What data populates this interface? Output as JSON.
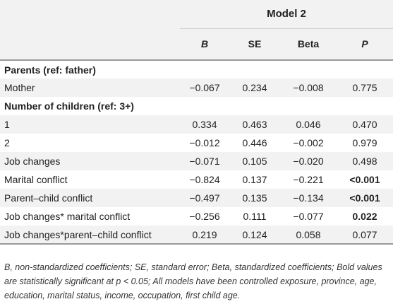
{
  "table": {
    "model_header": "Model 2",
    "columns": [
      "B",
      "SE",
      "Beta",
      "P"
    ],
    "rows": [
      {
        "label": "Parents (ref: father)",
        "section": true,
        "cells": [
          "",
          "",
          "",
          ""
        ]
      },
      {
        "label": "Mother",
        "section": false,
        "cells": [
          "−0.067",
          "0.234",
          "−0.008",
          "0.775"
        ],
        "bold_p": false
      },
      {
        "label": "Number of children (ref: 3+)",
        "section": true,
        "cells": [
          "",
          "",
          "",
          ""
        ]
      },
      {
        "label": "1",
        "section": false,
        "cells": [
          "0.334",
          "0.463",
          "0.046",
          "0.470"
        ],
        "bold_p": false
      },
      {
        "label": "2",
        "section": false,
        "cells": [
          "−0.012",
          "0.446",
          "−0.002",
          "0.979"
        ],
        "bold_p": false
      },
      {
        "label": "Job changes",
        "section": false,
        "cells": [
          "−0.071",
          "0.105",
          "−0.020",
          "0.498"
        ],
        "bold_p": false
      },
      {
        "label": "Marital conflict",
        "section": false,
        "cells": [
          "−0.824",
          "0.137",
          "−0.221",
          "<0.001"
        ],
        "bold_p": true
      },
      {
        "label": "Parent–child conflict",
        "section": false,
        "cells": [
          "−0.497",
          "0.135",
          "−0.134",
          "<0.001"
        ],
        "bold_p": true
      },
      {
        "label": "Job changes* marital conflict",
        "section": false,
        "cells": [
          "−0.256",
          "0.111",
          "−0.077",
          "0.022"
        ],
        "bold_p": true
      },
      {
        "label": "Job changes*parent–child conflict",
        "section": false,
        "cells": [
          "0.219",
          "0.124",
          "0.058",
          "0.077"
        ],
        "bold_p": false
      }
    ]
  },
  "footnote": "B, non-standardized coefficients; SE, standard error; Beta, standardized coefficients; Bold values are statistically significant at p < 0.05; All models have been controlled exposure, province, age, education, marital status, income, occupation, first child age."
}
